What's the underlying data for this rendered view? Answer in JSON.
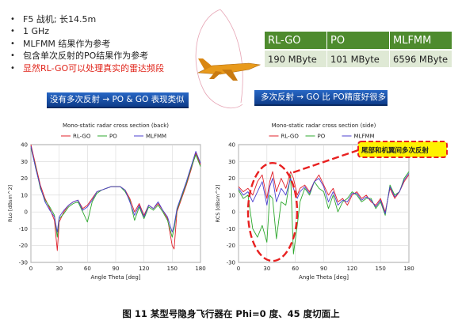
{
  "bullets": [
    {
      "text": "F5 战机; 长14.5m",
      "color": "#222"
    },
    {
      "text": "1 GHz",
      "color": "#222"
    },
    {
      "text": "MLFMM 结果作为参考",
      "color": "#222"
    },
    {
      "text": "包含单次反射的PO结果作为参考",
      "color": "#222"
    },
    {
      "text": "显然RL-GO可以处理真实的雷达频段",
      "color": "#e0251b"
    }
  ],
  "memory_table": {
    "headers": [
      "RL-GO",
      "PO",
      "MLFMM"
    ],
    "values": [
      "190 MByte",
      "101 MByte",
      "6596 MByte"
    ],
    "header_color": "#4e8b2e",
    "cell_color": "#dfe9d5"
  },
  "banners": {
    "left": "没有多次反射  →   PO & GO 表现类似",
    "right": "多次反射  →   GO 比 PO精度好很多"
  },
  "callout": "尾部和机翼间多次反射",
  "caption": "图 11 某型号隐身飞行器在 Phi=0 度、45 度切面上",
  "colors": {
    "rlgo": "#e0202a",
    "po": "#2ea82e",
    "mlfmm": "#4b3fcf",
    "highlight": "#e82020"
  },
  "chart_data": [
    {
      "type": "line",
      "title": "Mono-static radar cross section (back)",
      "xlabel": "Angle Theta [deg]",
      "ylabel": "RLo [dBsm^2]",
      "xlim": [
        0,
        180
      ],
      "ylim": [
        -30,
        40
      ],
      "xticks": [
        0,
        30,
        60,
        90,
        120,
        150,
        180
      ],
      "yticks": [
        -30,
        -20,
        -10,
        0,
        10,
        20,
        30,
        40
      ],
      "grid": true,
      "legend": "top",
      "x": [
        0,
        5,
        10,
        15,
        20,
        25,
        28,
        30,
        35,
        40,
        45,
        50,
        55,
        60,
        65,
        70,
        75,
        80,
        85,
        90,
        95,
        100,
        105,
        110,
        115,
        120,
        125,
        130,
        135,
        140,
        145,
        150,
        152,
        155,
        160,
        165,
        170,
        175,
        180
      ],
      "series": [
        {
          "name": "RL-GO",
          "values": [
            40,
            28,
            16,
            8,
            2,
            -5,
            -23,
            -6,
            0,
            4,
            6,
            7,
            2,
            4,
            8,
            12,
            13,
            14,
            15,
            15,
            15,
            13,
            8,
            0,
            5,
            -2,
            4,
            2,
            5,
            1,
            -4,
            -20,
            -22,
            0,
            8,
            16,
            25,
            35,
            28
          ]
        },
        {
          "name": "PO",
          "values": [
            38,
            27,
            14,
            7,
            3,
            -2,
            -15,
            -4,
            -1,
            3,
            5,
            6,
            0,
            -6,
            6,
            11,
            13,
            14,
            15,
            15,
            15,
            12,
            7,
            -5,
            3,
            -4,
            3,
            1,
            4,
            0,
            -5,
            -15,
            -10,
            1,
            9,
            17,
            26,
            34,
            27
          ]
        },
        {
          "name": "MLFMM",
          "values": [
            39,
            26,
            15,
            6,
            1,
            -3,
            -12,
            -3,
            1,
            4,
            6,
            7,
            1,
            3,
            7,
            12,
            13,
            14,
            15,
            15,
            15,
            13,
            6,
            -2,
            4,
            -3,
            4,
            2,
            6,
            1,
            -3,
            -12,
            -8,
            2,
            10,
            18,
            27,
            36,
            29
          ]
        }
      ]
    },
    {
      "type": "line",
      "title": "Mono-static radar cross section (side)",
      "xlabel": "Angle Theta [deg]",
      "ylabel": "RCS [dBsm^2]",
      "xlim": [
        0,
        180
      ],
      "ylim": [
        -30,
        40
      ],
      "xticks": [
        0,
        30,
        60,
        90,
        120,
        150,
        180
      ],
      "yticks": [
        -30,
        -20,
        -10,
        0,
        10,
        20,
        30,
        40
      ],
      "grid": true,
      "legend": "top",
      "x": [
        0,
        5,
        10,
        15,
        20,
        25,
        30,
        33,
        36,
        40,
        45,
        50,
        55,
        58,
        62,
        65,
        70,
        75,
        80,
        85,
        90,
        95,
        100,
        105,
        110,
        115,
        120,
        125,
        130,
        135,
        140,
        145,
        150,
        155,
        160,
        165,
        170,
        175,
        180
      ],
      "series": [
        {
          "name": "RL-GO",
          "values": [
            15,
            12,
            14,
            10,
            18,
            22,
            8,
            18,
            24,
            12,
            20,
            14,
            24,
            20,
            10,
            14,
            16,
            12,
            18,
            22,
            16,
            10,
            14,
            6,
            8,
            4,
            10,
            12,
            8,
            10,
            6,
            4,
            8,
            0,
            14,
            8,
            12,
            18,
            22
          ]
        },
        {
          "name": "PO",
          "values": [
            13,
            8,
            10,
            -10,
            -15,
            -8,
            -18,
            10,
            8,
            -16,
            6,
            4,
            22,
            -25,
            -8,
            6,
            14,
            10,
            18,
            14,
            12,
            2,
            10,
            0,
            6,
            8,
            12,
            10,
            6,
            8,
            8,
            2,
            6,
            -2,
            16,
            10,
            12,
            20,
            24
          ]
        },
        {
          "name": "MLFMM",
          "values": [
            14,
            10,
            12,
            6,
            12,
            18,
            4,
            15,
            20,
            6,
            14,
            10,
            20,
            14,
            8,
            12,
            15,
            11,
            18,
            20,
            15,
            6,
            12,
            4,
            7,
            6,
            11,
            11,
            7,
            9,
            7,
            3,
            7,
            -1,
            15,
            9,
            12,
            19,
            23
          ]
        }
      ]
    }
  ]
}
